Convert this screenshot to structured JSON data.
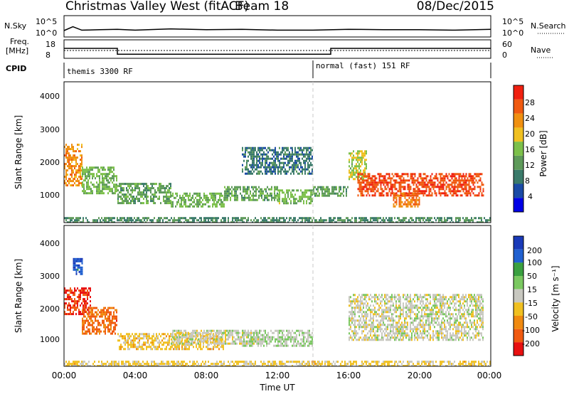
{
  "header": {
    "title": "Christmas Valley West (fitACF)",
    "beam": "Beam 18",
    "date": "08/Dec/2015"
  },
  "noise_panel": {
    "left_label": "N.Sky",
    "right_label": "N.Search",
    "left_ticks": [
      "10^5",
      "10^0"
    ],
    "right_ticks": [
      "10^5",
      "10^0"
    ]
  },
  "freq_panel": {
    "left_label_line1": "Freq.",
    "left_label_line2": "[MHz]",
    "left_ticks": [
      "18",
      "8"
    ],
    "right_label": "Nave",
    "right_ticks": [
      "60",
      "0"
    ]
  },
  "cpid_panel": {
    "label": "CPID",
    "segments": [
      {
        "text": "themis 3300 RF",
        "start_hour": 0,
        "end_hour": 14
      },
      {
        "text": "normal (fast) 151 RF",
        "start_hour": 14,
        "end_hour": 24
      }
    ]
  },
  "power_panel": {
    "ylabel": "Slant Range [km]",
    "y_ticks": [
      "4000",
      "3000",
      "2000",
      "1000"
    ],
    "colorbar_label": "Power [dB]",
    "colorbar_ticks": [
      "28",
      "24",
      "20",
      "16",
      "12",
      "8",
      "4"
    ],
    "colors": [
      "#0000e6",
      "#1a4aa6",
      "#3a7a6a",
      "#5e9a5a",
      "#7cc04a",
      "#f0c020",
      "#f09010",
      "#f05a10",
      "#f02010"
    ]
  },
  "velocity_panel": {
    "ylabel": "Slant Range [km]",
    "y_ticks": [
      "4000",
      "3000",
      "2000",
      "1000"
    ],
    "colorbar_label": "Velocity [m s⁻¹]",
    "colorbar_ticks": [
      "200",
      "100",
      "50",
      "15",
      "-15",
      "-50",
      "-100",
      "-200"
    ],
    "colors": [
      "#1a3ab8",
      "#2060d0",
      "#3aa040",
      "#7ac860",
      "#c8c8c0",
      "#f0c020",
      "#f08a10",
      "#f05a10",
      "#e81010"
    ]
  },
  "x_axis": {
    "ticks": [
      "00:00",
      "04:00",
      "08:00",
      "12:00",
      "16:00",
      "20:00",
      "00:00"
    ],
    "label": "Time UT"
  },
  "chart_data": [
    {
      "type": "line",
      "name": "noise",
      "x": [
        0,
        0.5,
        1,
        2,
        3,
        4,
        6,
        8,
        10,
        12,
        14,
        16,
        18,
        20,
        22,
        24
      ],
      "series": [
        {
          "values": [
            1.5,
            2.4,
            1.6,
            1.7,
            1.8,
            1.6,
            1.9,
            1.7,
            1.8,
            1.6,
            1.6,
            1.8,
            1.7,
            1.7,
            1.6,
            1.8
          ]
        }
      ],
      "ylim": [
        0,
        5
      ]
    },
    {
      "type": "line",
      "name": "frequency",
      "x": [
        0,
        3,
        3,
        15,
        15,
        24
      ],
      "series": [
        {
          "values": [
            13.4,
            13.4,
            10.2,
            10.2,
            13.4,
            13.4
          ]
        }
      ],
      "ylim": [
        8,
        18
      ]
    },
    {
      "type": "heatmap",
      "name": "power",
      "xlabel": "Time UT",
      "ylabel": "Slant Range [km]",
      "xlim": [
        0,
        24
      ],
      "ylim": [
        180,
        4500
      ],
      "colorbar": {
        "label": "Power [dB]",
        "range": [
          0,
          30
        ]
      },
      "regions": [
        {
          "t0": 0.0,
          "t1": 1.0,
          "r0": 1300,
          "r1": 2600,
          "level": 22
        },
        {
          "t0": 1.0,
          "t1": 3.0,
          "r0": 1100,
          "r1": 1900,
          "level": 14
        },
        {
          "t0": 3.0,
          "t1": 6.0,
          "r0": 800,
          "r1": 1400,
          "level": 12
        },
        {
          "t0": 6.0,
          "t1": 9.0,
          "r0": 700,
          "r1": 1100,
          "level": 14
        },
        {
          "t0": 9.0,
          "t1": 12.0,
          "r0": 900,
          "r1": 1300,
          "level": 12
        },
        {
          "t0": 12.0,
          "t1": 14.0,
          "r0": 800,
          "r1": 1200,
          "level": 14
        },
        {
          "t0": 10.0,
          "t1": 14.0,
          "r0": 1700,
          "r1": 2500,
          "level": 8
        },
        {
          "t0": 14.0,
          "t1": 16.0,
          "r0": 1000,
          "r1": 1300,
          "level": 12
        },
        {
          "t0": 16.0,
          "t1": 17.0,
          "r0": 1500,
          "r1": 2400,
          "level": 16
        },
        {
          "t0": 16.5,
          "t1": 23.6,
          "r0": 1000,
          "r1": 1700,
          "level": 26
        },
        {
          "t0": 18.5,
          "t1": 20.0,
          "r0": 700,
          "r1": 1100,
          "level": 24
        },
        {
          "t0": 0.0,
          "t1": 24.0,
          "r0": 180,
          "r1": 350,
          "level": 10
        }
      ]
    },
    {
      "type": "heatmap",
      "name": "velocity",
      "xlabel": "Time UT",
      "ylabel": "Slant Range [km]",
      "xlim": [
        0,
        24
      ],
      "ylim": [
        180,
        4500
      ],
      "colorbar": {
        "label": "Velocity [m s⁻¹]",
        "range": [
          -250,
          250
        ]
      },
      "regions": [
        {
          "t0": 0.0,
          "t1": 1.5,
          "r0": 1800,
          "r1": 2600,
          "value": -200
        },
        {
          "t0": 1.0,
          "t1": 3.0,
          "r0": 1200,
          "r1": 2000,
          "value": -150
        },
        {
          "t0": 0.5,
          "t1": 1.0,
          "r0": 3000,
          "r1": 3500,
          "value": 180
        },
        {
          "t0": 3.0,
          "t1": 9.0,
          "r0": 700,
          "r1": 1200,
          "value": -50
        },
        {
          "t0": 6.0,
          "t1": 11.0,
          "r0": 900,
          "r1": 1300,
          "value": 0
        },
        {
          "t0": 10.0,
          "t1": 14.0,
          "r0": 800,
          "r1": 1300,
          "value": 20
        },
        {
          "t0": 16.0,
          "t1": 23.6,
          "r0": 1000,
          "r1": 2400,
          "value": 0
        },
        {
          "t0": 0.0,
          "t1": 24.0,
          "r0": 180,
          "r1": 350,
          "value": -40
        }
      ]
    }
  ]
}
